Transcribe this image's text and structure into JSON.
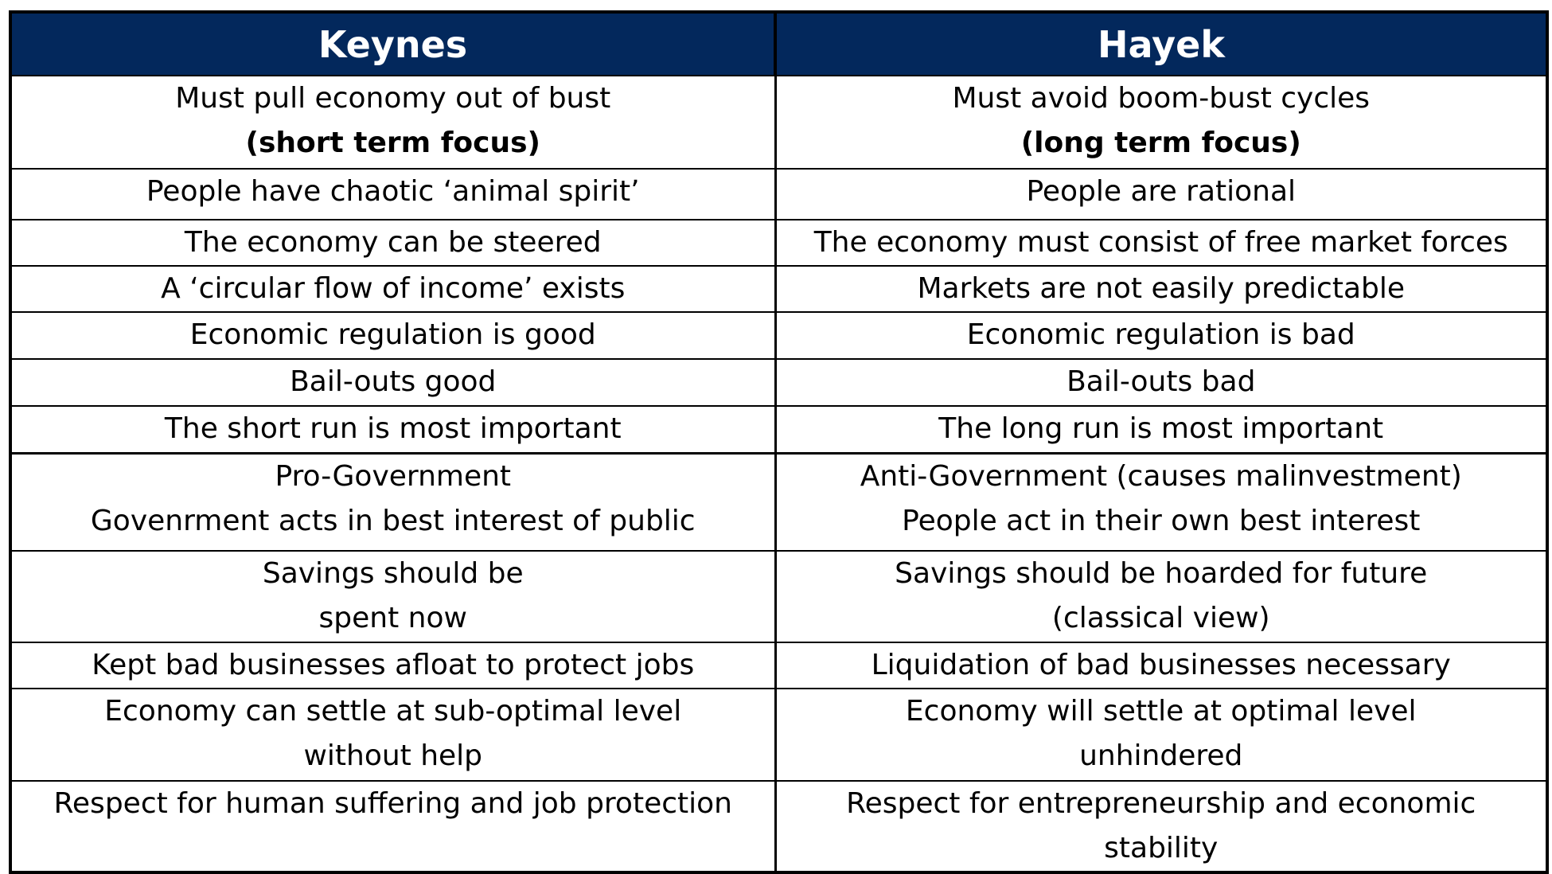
{
  "table": {
    "headers": [
      "Keynes",
      "Hayek"
    ],
    "rows": [
      {
        "keynes": [
          "Must pull economy out of bust",
          "(short term focus)"
        ],
        "hayek": [
          "Must avoid boom-bust cycles",
          "(long term focus)"
        ]
      },
      {
        "keynes": [
          "People have chaotic ‘animal spirit’"
        ],
        "hayek": [
          "People are rational"
        ]
      },
      {
        "keynes": [
          "The economy can be steered"
        ],
        "hayek": [
          "The economy must consist of free market forces"
        ]
      },
      {
        "keynes": [
          "A ‘circular flow of income’ exists"
        ],
        "hayek": [
          "Markets are not easily predictable"
        ]
      },
      {
        "keynes": [
          "Economic regulation is good"
        ],
        "hayek": [
          "Economic regulation is bad"
        ]
      },
      {
        "keynes": [
          "Bail-outs good"
        ],
        "hayek": [
          "Bail-outs bad"
        ]
      },
      {
        "keynes": [
          "The short run is most important"
        ],
        "hayek": [
          "The long run is most important"
        ]
      },
      {
        "keynes": [
          "Pro-Government",
          "Govenrment acts in best interest of public"
        ],
        "hayek": [
          "Anti-Government (causes malinvestment)",
          "People act in their own best interest"
        ]
      },
      {
        "keynes": [
          "Savings should be",
          "spent now"
        ],
        "hayek": [
          "Savings should be hoarded for future",
          "(classical view)"
        ]
      },
      {
        "keynes": [
          "Kept bad businesses afloat to protect jobs"
        ],
        "hayek": [
          "Liquidation of bad businesses necessary"
        ]
      },
      {
        "keynes": [
          "Economy can settle at sub-optimal level",
          "without help"
        ],
        "hayek": [
          "Economy will settle at optimal level",
          "unhindered"
        ]
      },
      {
        "keynes": [
          "Respect for human suffering and job protection"
        ],
        "hayek": [
          "Respect for entrepreneurship and economic",
          "stability"
        ]
      }
    ]
  },
  "colors": {
    "header_background": "#03285c",
    "header_text": "#ffffff",
    "border": "#000000"
  }
}
